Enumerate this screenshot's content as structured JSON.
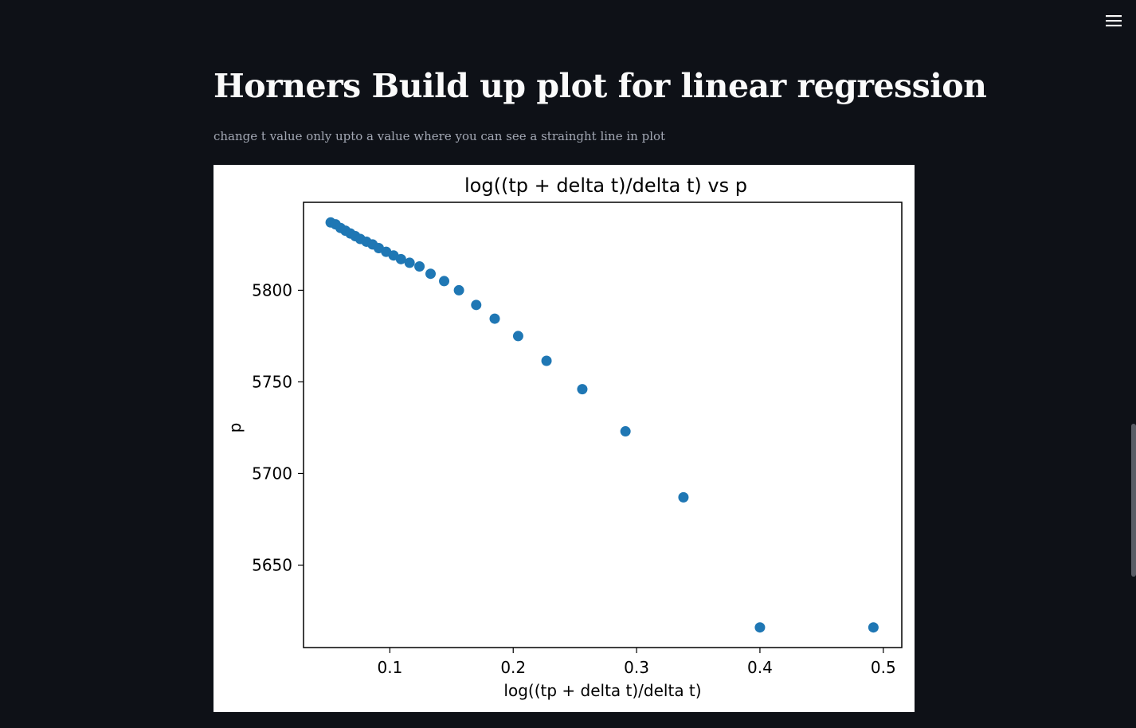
{
  "page": {
    "title": "Horners Build up plot for linear regression",
    "caption": "change t value only upto a value where you can see a strainght line in plot"
  },
  "icons": {
    "menu": "hamburger-menu-icon"
  },
  "colors": {
    "background": "#0e1117",
    "marker": "#1f77b4"
  },
  "chart_data": {
    "type": "scatter",
    "title": "log((tp + delta t)/delta t) vs p",
    "xlabel": "log((tp + delta t)/delta t)",
    "ylabel": "p",
    "xlim": [
      0.03,
      0.515
    ],
    "ylim": [
      5605,
      5848
    ],
    "xticks": [
      0.1,
      0.2,
      0.3,
      0.4,
      0.5
    ],
    "yticks": [
      5650,
      5700,
      5750,
      5800
    ],
    "xtick_labels": [
      "0.1",
      "0.2",
      "0.3",
      "0.4",
      "0.5"
    ],
    "ytick_labels": [
      "5650",
      "5700",
      "5750",
      "5800"
    ],
    "grid": false,
    "legend": false,
    "x": [
      0.052,
      0.056,
      0.06,
      0.064,
      0.068,
      0.072,
      0.076,
      0.081,
      0.086,
      0.091,
      0.097,
      0.103,
      0.109,
      0.116,
      0.124,
      0.133,
      0.144,
      0.156,
      0.17,
      0.185,
      0.204,
      0.227,
      0.256,
      0.291,
      0.338,
      0.4,
      0.492
    ],
    "y": [
      5837,
      5836,
      5834,
      5832.5,
      5831,
      5829.5,
      5828,
      5826.5,
      5825,
      5823,
      5821,
      5819,
      5817,
      5815,
      5813,
      5809,
      5805,
      5800,
      5792,
      5784.5,
      5775,
      5761.5,
      5746,
      5723,
      5687,
      5616,
      5616
    ]
  }
}
